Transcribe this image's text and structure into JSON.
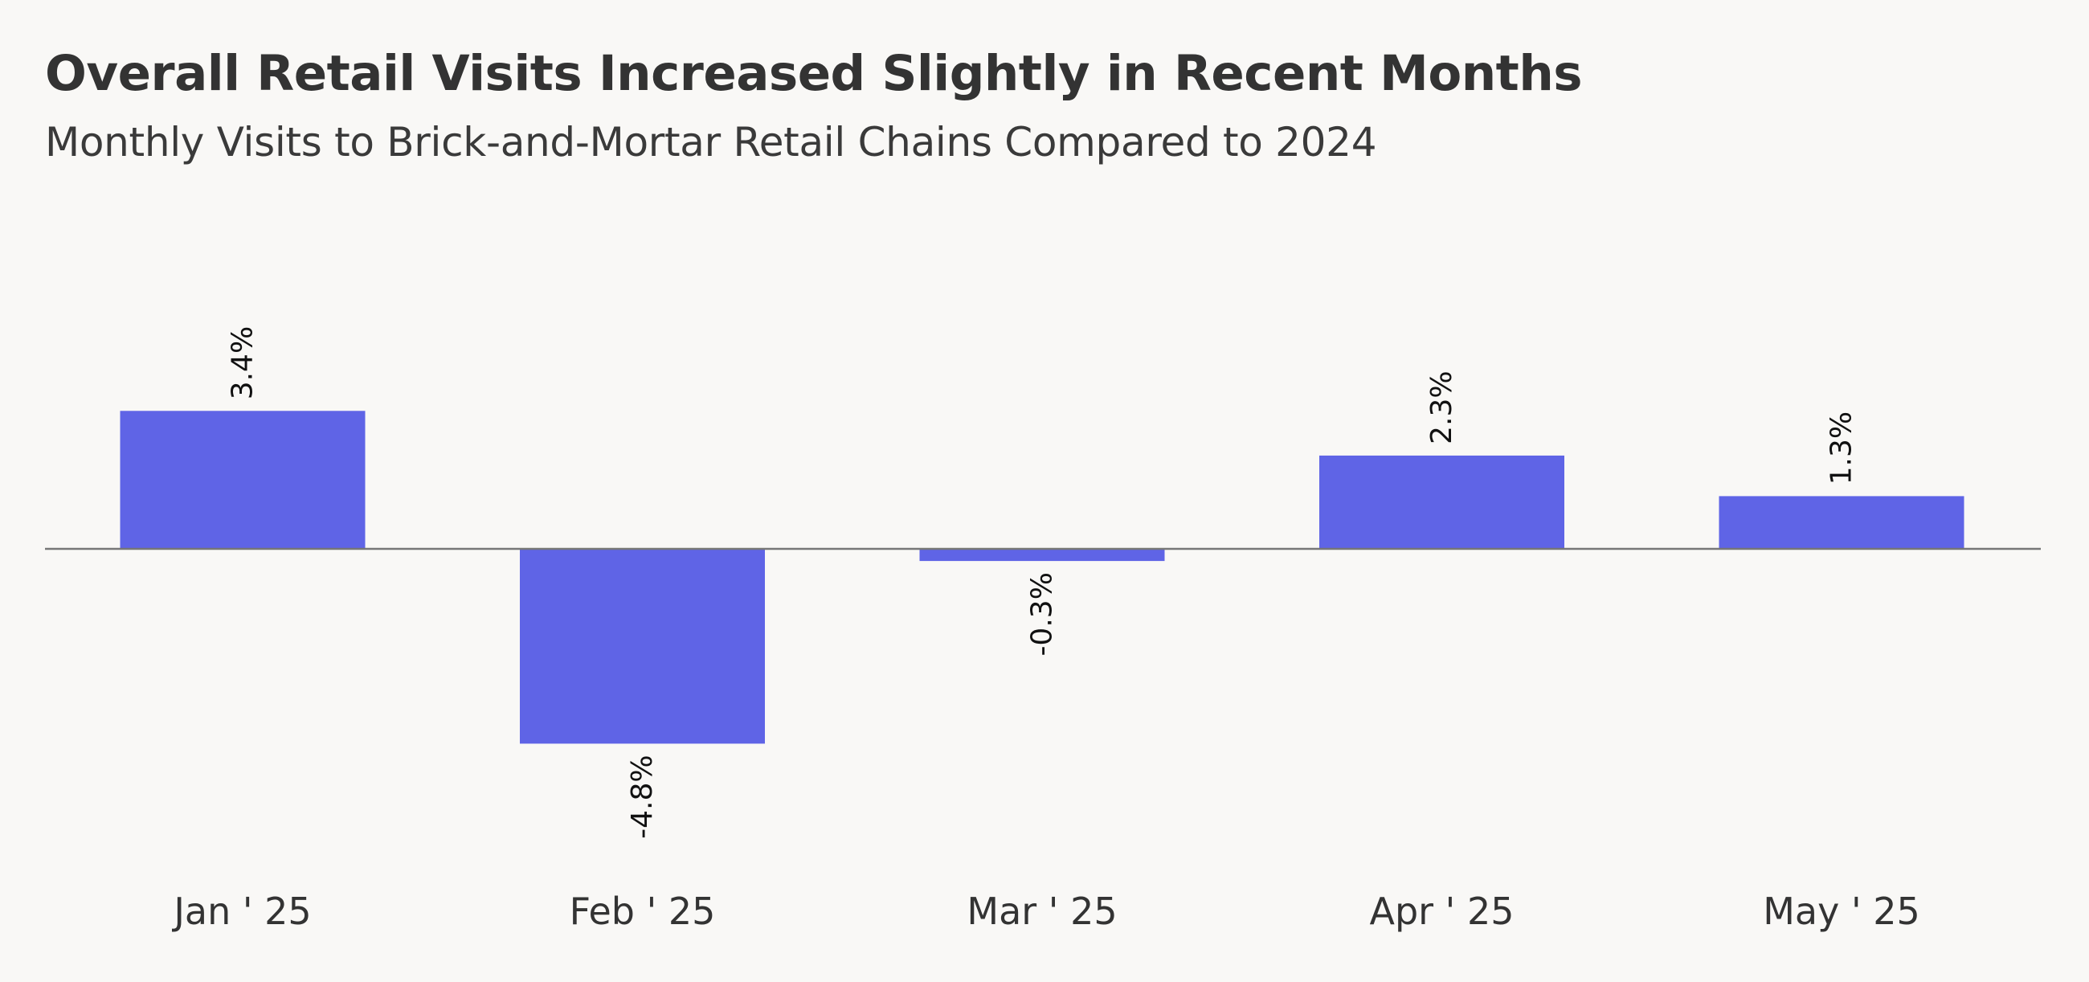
{
  "chart_data": {
    "type": "bar",
    "title": "Overall Retail Visits Increased Slightly in Recent Months",
    "subtitle": "Monthly Visits to Brick-and-Mortar Retail Chains Compared to 2024",
    "categories": [
      "Jan ' 25",
      "Feb ' 25",
      "Mar ' 25",
      "Apr ' 25",
      "May ' 25"
    ],
    "values": [
      3.4,
      -4.8,
      -0.3,
      2.3,
      1.3
    ],
    "value_labels": [
      "3.4%",
      "-4.8%",
      "-0.3%",
      "2.3%",
      "1.3%"
    ],
    "xlabel": "",
    "ylabel": "",
    "ylim": [
      -6.5,
      5.5
    ],
    "grid": false,
    "legend": "none",
    "colors": {
      "bar": "#5f64e6",
      "zero_line": "#777777",
      "background": "#f9f8f6"
    }
  }
}
